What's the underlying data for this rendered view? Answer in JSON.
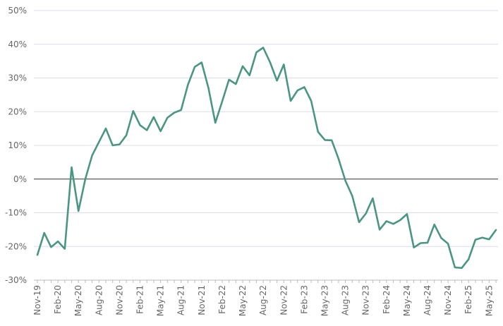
{
  "chart_data": {
    "type": "line",
    "title": "",
    "xlabel": "",
    "ylabel": "",
    "ylim": [
      -30,
      50
    ],
    "yticks": [
      -30,
      -20,
      -10,
      0,
      10,
      20,
      30,
      40,
      50
    ],
    "ytick_labels": [
      "-30%",
      "-20%",
      "-10%",
      "0%",
      "10%",
      "20%",
      "30%",
      "40%",
      "50%"
    ],
    "grid": true,
    "legend": "none",
    "line_color": "#4a9683",
    "x": [
      "2019-11",
      "2019-12",
      "2020-01",
      "2020-02",
      "2020-03",
      "2020-04",
      "2020-05",
      "2020-06",
      "2020-07",
      "2020-08",
      "2020-09",
      "2020-10",
      "2020-11",
      "2020-12",
      "2021-01",
      "2021-02",
      "2021-03",
      "2021-04",
      "2021-05",
      "2021-06",
      "2021-07",
      "2021-08",
      "2021-09",
      "2021-10",
      "2021-11",
      "2021-12",
      "2022-01",
      "2022-02",
      "2022-03",
      "2022-04",
      "2022-05",
      "2022-06",
      "2022-07",
      "2022-08",
      "2022-09",
      "2022-10",
      "2022-11",
      "2022-12",
      "2023-01",
      "2023-02",
      "2023-03",
      "2023-04",
      "2023-05",
      "2023-06",
      "2023-07",
      "2023-08",
      "2023-09",
      "2023-10",
      "2023-11",
      "2023-12",
      "2024-01",
      "2024-02",
      "2024-03",
      "2024-04",
      "2024-05",
      "2024-06",
      "2024-07",
      "2024-08",
      "2024-09",
      "2024-10",
      "2024-11",
      "2024-12",
      "2025-01",
      "2025-02",
      "2025-03",
      "2025-04",
      "2025-05",
      "2025-06"
    ],
    "series": [
      {
        "values": [
          -22.5,
          -16,
          -20.2,
          -18.5,
          -20.7,
          3.5,
          -9.5,
          0,
          7,
          11,
          15,
          10,
          10.3,
          13,
          20.2,
          16,
          14.5,
          18.4,
          14.2,
          18.2,
          19.7,
          20.5,
          28,
          33.3,
          34.6,
          27,
          16.7,
          23,
          29.5,
          28.2,
          33.5,
          30.8,
          37.6,
          39,
          34.6,
          29.2,
          34,
          23.2,
          26.3,
          27.3,
          23.2,
          14,
          11.6,
          11.5,
          6,
          -0.5,
          -5,
          -12.8,
          -10.2,
          -5.7,
          -15,
          -12.5,
          -13.3,
          -12.2,
          -10.4,
          -20.3,
          -19,
          -18.9,
          -13.5,
          -17.5,
          -19.2,
          -26.2,
          -26.4,
          -23.8,
          -18,
          -17.4,
          -17.9,
          -15.1
        ]
      }
    ],
    "x_tick_labels": [
      "Nov-19",
      "Feb-20",
      "May-20",
      "Aug-20",
      "Nov-20",
      "Feb-21",
      "May-21",
      "Aug-21",
      "Nov-21",
      "Feb-22",
      "May-22",
      "Aug-22",
      "Nov-22",
      "Feb-23",
      "May-23",
      "Aug-23",
      "Nov-23",
      "Feb-24",
      "May-24",
      "Aug-24",
      "Nov-24",
      "Feb-25",
      "May-25"
    ],
    "x_tick_every": 3
  }
}
